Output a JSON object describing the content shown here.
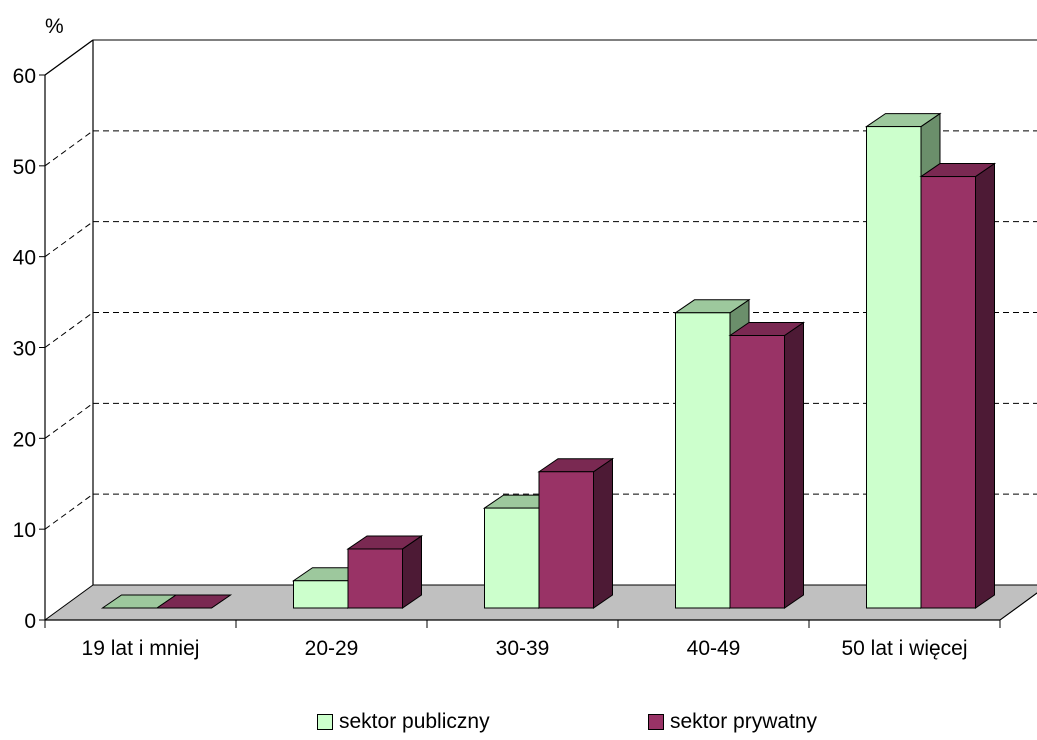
{
  "chart_data": {
    "type": "bar",
    "ylabel": "%",
    "ylim": [
      0,
      60
    ],
    "yticks": [
      "0",
      "10",
      "20",
      "30",
      "40",
      "50",
      "60"
    ],
    "categories": [
      "19 lat i mniej",
      "20-29",
      "30-39",
      "40-49",
      "50 lat i więcej"
    ],
    "series": [
      {
        "name": "sektor publiczny",
        "values": [
          0,
          3,
          11,
          32.5,
          53
        ],
        "color": "#ccffcc",
        "top_color": "#9dc89d",
        "side_color": "#6b8f6b"
      },
      {
        "name": "sektor prywatny",
        "values": [
          0,
          6.5,
          15,
          30,
          47.5
        ],
        "color": "#993366",
        "top_color": "#7a2952",
        "side_color": "#4d1a35"
      }
    ],
    "grid": true,
    "style": "3d-column",
    "legend_position": "bottom"
  }
}
